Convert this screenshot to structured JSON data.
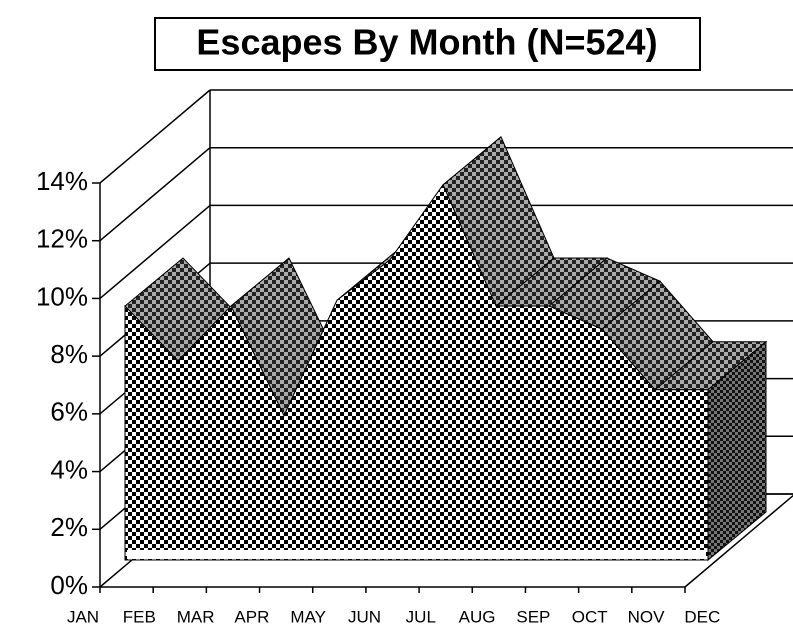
{
  "chart_data": {
    "type": "area3d",
    "title": "Escapes By Month (N=524)",
    "categories": [
      "JAN",
      "FEB",
      "MAR",
      "APR",
      "MAY",
      "JUN",
      "JUL",
      "AUG",
      "SEP",
      "OCT",
      "NOV",
      "DEC"
    ],
    "values": [
      8.8,
      6.9,
      8.8,
      5.0,
      9.0,
      10.4,
      13.0,
      8.8,
      8.8,
      8.0,
      5.9,
      5.9
    ],
    "ylim": [
      0,
      14
    ],
    "yticks": [
      {
        "value": 0,
        "label": "0%"
      },
      {
        "value": 2,
        "label": "2%"
      },
      {
        "value": 4,
        "label": "4%"
      },
      {
        "value": 6,
        "label": "6%"
      },
      {
        "value": 8,
        "label": "8%"
      },
      {
        "value": 10,
        "label": "10%"
      },
      {
        "value": 12,
        "label": "12%"
      },
      {
        "value": 14,
        "label": "14%"
      }
    ],
    "grid": true
  }
}
